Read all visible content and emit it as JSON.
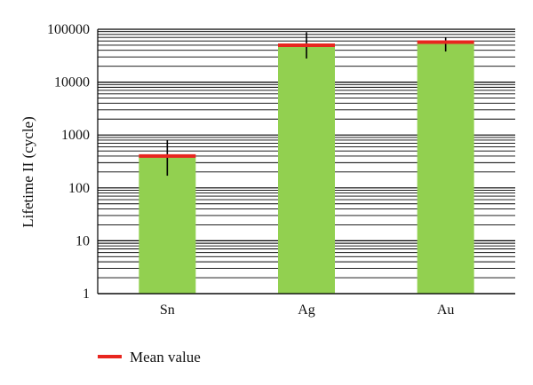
{
  "chart_data": {
    "type": "bar",
    "title": "",
    "xlabel": "",
    "ylabel": "Lifetime II (cycle)",
    "yscale": "log",
    "ylim": [
      1,
      100000
    ],
    "yticks": [
      1,
      10,
      100,
      1000,
      10000,
      100000
    ],
    "ytick_labels": [
      "1",
      "10",
      "100",
      "1000",
      "10000",
      "100000"
    ],
    "grid": "horizontal minor and major",
    "categories": [
      "Sn",
      "Ag",
      "Au"
    ],
    "values": [
      400,
      50000,
      57000
    ],
    "error_low": [
      170,
      28000,
      38000
    ],
    "error_high": [
      800,
      88000,
      70000
    ],
    "bar_color": "#92d050",
    "mean_color": "#e8261f",
    "legend": {
      "position": "bottom-left",
      "label": "Mean value"
    }
  }
}
